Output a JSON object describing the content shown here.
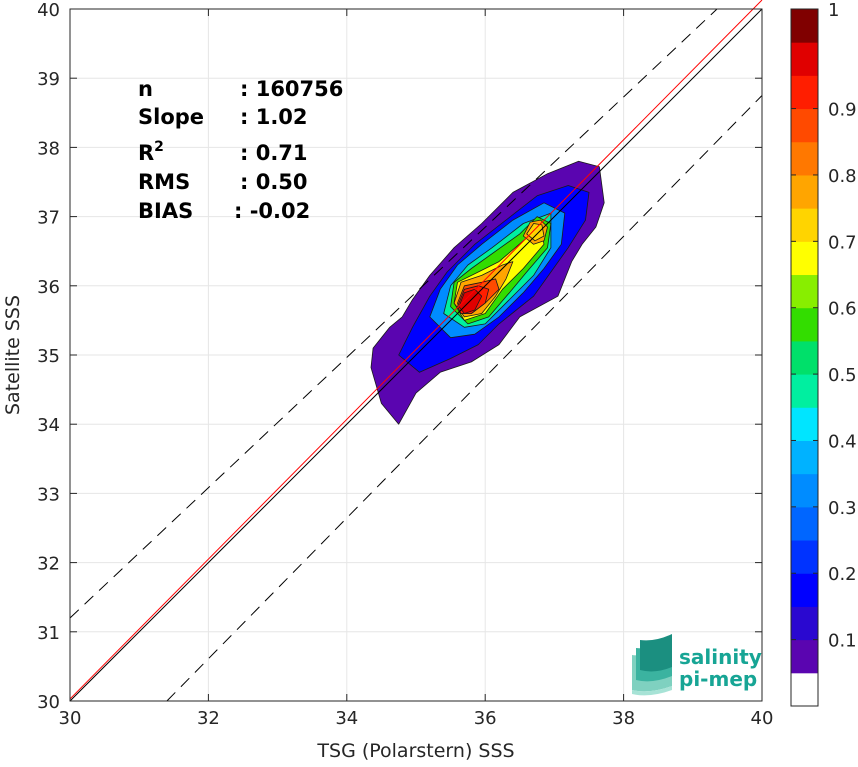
{
  "chart_data": {
    "type": "contour",
    "xlabel": "TSG (Polarstern) SSS",
    "ylabel": "Satellite SSS",
    "xlim": [
      30,
      40
    ],
    "ylim": [
      30,
      40
    ],
    "xticks": [
      "30",
      "32",
      "34",
      "36",
      "38",
      "40"
    ],
    "yticks": [
      "30",
      "31",
      "32",
      "33",
      "34",
      "35",
      "36",
      "37",
      "38",
      "39",
      "40"
    ],
    "grid": true,
    "colorbar": {
      "ticks": [
        "0.1",
        "0.2",
        "0.3",
        "0.4",
        "0.5",
        "0.6",
        "0.7",
        "0.8",
        "0.9",
        "1"
      ],
      "levels": [
        0,
        0.05,
        0.1,
        0.15,
        0.2,
        0.25,
        0.3,
        0.35,
        0.4,
        0.45,
        0.5,
        0.55,
        0.6,
        0.65,
        0.7,
        0.75,
        0.8,
        0.85,
        0.9,
        0.95,
        1.0
      ],
      "colors": [
        "#ffffff",
        "#5a05b0",
        "#2a08d0",
        "#0000ff",
        "#0033ff",
        "#0066ff",
        "#008cff",
        "#00b2ff",
        "#00e5ff",
        "#00efa0",
        "#00e06a",
        "#33dd00",
        "#88ee00",
        "#ffff00",
        "#ffd400",
        "#ffa500",
        "#ff7800",
        "#ff4a00",
        "#ff1e00",
        "#e00000",
        "#800000"
      ]
    },
    "lines": {
      "one_to_one": {
        "x": [
          30,
          40
        ],
        "y": [
          30,
          40
        ],
        "color": "#000000"
      },
      "regression": {
        "x": [
          30,
          40
        ],
        "y": [
          30.03,
          40.13
        ],
        "color": "#ff0000"
      },
      "upper_bound": {
        "x": [
          30,
          39.35
        ],
        "y": [
          31.2,
          40
        ],
        "color": "#000000",
        "dash": true
      },
      "lower_bound": {
        "x": [
          31.4,
          40
        ],
        "y": [
          30,
          38.75
        ],
        "color": "#000000",
        "dash": true
      }
    },
    "contours": [
      {
        "level": 0.05,
        "points": [
          [
            34.35,
            34.82
          ],
          [
            34.38,
            35.1
          ],
          [
            34.62,
            35.4
          ],
          [
            34.8,
            35.55
          ],
          [
            34.95,
            35.8
          ],
          [
            35.2,
            36.15
          ],
          [
            35.55,
            36.55
          ],
          [
            35.95,
            36.9
          ],
          [
            36.4,
            37.35
          ],
          [
            36.9,
            37.62
          ],
          [
            37.35,
            37.8
          ],
          [
            37.65,
            37.72
          ],
          [
            37.72,
            37.2
          ],
          [
            37.6,
            36.85
          ],
          [
            37.4,
            36.6
          ],
          [
            37.25,
            36.35
          ],
          [
            37.05,
            35.85
          ],
          [
            36.5,
            35.55
          ],
          [
            36.2,
            35.15
          ],
          [
            35.8,
            34.9
          ],
          [
            35.35,
            34.75
          ],
          [
            35.0,
            34.45
          ],
          [
            34.75,
            34.0
          ],
          [
            34.5,
            34.3
          ]
        ]
      },
      {
        "level": 0.15,
        "points": [
          [
            34.75,
            35.0
          ],
          [
            34.95,
            35.4
          ],
          [
            35.2,
            35.85
          ],
          [
            35.45,
            36.2
          ],
          [
            35.85,
            36.6
          ],
          [
            36.3,
            36.95
          ],
          [
            36.75,
            37.3
          ],
          [
            37.2,
            37.45
          ],
          [
            37.5,
            37.35
          ],
          [
            37.45,
            36.95
          ],
          [
            37.2,
            36.55
          ],
          [
            36.95,
            36.2
          ],
          [
            36.7,
            35.85
          ],
          [
            36.2,
            35.45
          ],
          [
            35.9,
            35.15
          ],
          [
            35.5,
            34.95
          ],
          [
            35.05,
            34.75
          ]
        ]
      },
      {
        "level": 0.3,
        "points": [
          [
            35.2,
            35.55
          ],
          [
            35.35,
            35.95
          ],
          [
            35.6,
            36.3
          ],
          [
            35.95,
            36.6
          ],
          [
            36.4,
            36.95
          ],
          [
            36.85,
            37.2
          ],
          [
            37.15,
            37.05
          ],
          [
            37.1,
            36.6
          ],
          [
            36.85,
            36.25
          ],
          [
            36.55,
            35.9
          ],
          [
            36.2,
            35.55
          ],
          [
            35.85,
            35.3
          ],
          [
            35.5,
            35.25
          ]
        ]
      },
      {
        "level": 0.45,
        "points": [
          [
            35.4,
            35.6
          ],
          [
            35.5,
            36.0
          ],
          [
            35.75,
            36.3
          ],
          [
            36.1,
            36.55
          ],
          [
            36.55,
            36.9
          ],
          [
            36.95,
            37.05
          ],
          [
            36.95,
            36.55
          ],
          [
            36.7,
            36.15
          ],
          [
            36.35,
            35.8
          ],
          [
            36.0,
            35.45
          ],
          [
            35.7,
            35.4
          ]
        ]
      },
      {
        "level": 0.55,
        "points": [
          [
            35.5,
            35.7
          ],
          [
            35.55,
            36.05
          ],
          [
            35.8,
            36.25
          ],
          [
            36.15,
            36.5
          ],
          [
            36.5,
            36.75
          ],
          [
            36.75,
            37.0
          ],
          [
            36.95,
            36.9
          ],
          [
            36.9,
            36.55
          ],
          [
            36.6,
            36.2
          ],
          [
            36.35,
            35.9
          ],
          [
            36.05,
            35.55
          ],
          [
            35.75,
            35.45
          ]
        ]
      },
      {
        "level": 0.65,
        "points": [
          [
            35.55,
            35.75
          ],
          [
            35.6,
            36.05
          ],
          [
            35.9,
            36.2
          ],
          [
            36.2,
            36.35
          ],
          [
            36.55,
            36.65
          ],
          [
            36.8,
            36.85
          ],
          [
            36.85,
            36.6
          ],
          [
            36.55,
            36.25
          ],
          [
            36.25,
            35.95
          ],
          [
            36.0,
            35.6
          ],
          [
            35.7,
            35.5
          ]
        ]
      },
      {
        "level": 0.75,
        "points": [
          [
            35.55,
            35.75
          ],
          [
            35.65,
            36.05
          ],
          [
            35.95,
            36.15
          ],
          [
            36.25,
            36.3
          ],
          [
            36.4,
            36.35
          ],
          [
            36.3,
            36.1
          ],
          [
            36.15,
            35.85
          ],
          [
            35.95,
            35.6
          ],
          [
            35.7,
            35.55
          ]
        ]
      },
      {
        "level": 0.85,
        "points": [
          [
            35.6,
            35.75
          ],
          [
            35.7,
            36.0
          ],
          [
            35.95,
            36.05
          ],
          [
            36.15,
            36.1
          ],
          [
            36.2,
            35.95
          ],
          [
            36.0,
            35.75
          ],
          [
            35.8,
            35.6
          ],
          [
            35.65,
            35.6
          ]
        ]
      },
      {
        "level": 0.9,
        "points": [
          [
            35.6,
            35.7
          ],
          [
            35.7,
            35.95
          ],
          [
            35.9,
            36.0
          ],
          [
            36.05,
            35.95
          ],
          [
            36.0,
            35.75
          ],
          [
            35.8,
            35.6
          ],
          [
            35.65,
            35.6
          ]
        ]
      },
      {
        "level": 0.95,
        "points": [
          [
            35.62,
            35.7
          ],
          [
            35.7,
            35.9
          ],
          [
            35.85,
            35.95
          ],
          [
            35.95,
            35.85
          ],
          [
            35.85,
            35.65
          ],
          [
            35.7,
            35.6
          ]
        ]
      },
      {
        "level": 0.75,
        "points": [
          [
            36.55,
            36.72
          ],
          [
            36.65,
            36.92
          ],
          [
            36.8,
            36.95
          ],
          [
            36.9,
            36.85
          ],
          [
            36.85,
            36.65
          ],
          [
            36.7,
            36.6
          ]
        ]
      },
      {
        "level": 0.7,
        "points": [
          [
            36.6,
            36.75
          ],
          [
            36.7,
            36.9
          ],
          [
            36.82,
            36.88
          ],
          [
            36.85,
            36.72
          ],
          [
            36.72,
            36.65
          ]
        ]
      }
    ],
    "stats": [
      {
        "label": "n",
        "sup": "",
        "value": ": 160756"
      },
      {
        "label": "Slope",
        "sup": "",
        "value": ": 1.02"
      },
      {
        "label": "R",
        "sup": "2",
        "value": ": 0.71"
      },
      {
        "label": "RMS",
        "sup": "",
        "value": ": 0.50"
      },
      {
        "label": "BIAS",
        "sup": "",
        "value": ": -0.02"
      }
    ]
  },
  "logo": {
    "line1": "salinity",
    "line2": "pi-mep",
    "color": "#17a595"
  }
}
